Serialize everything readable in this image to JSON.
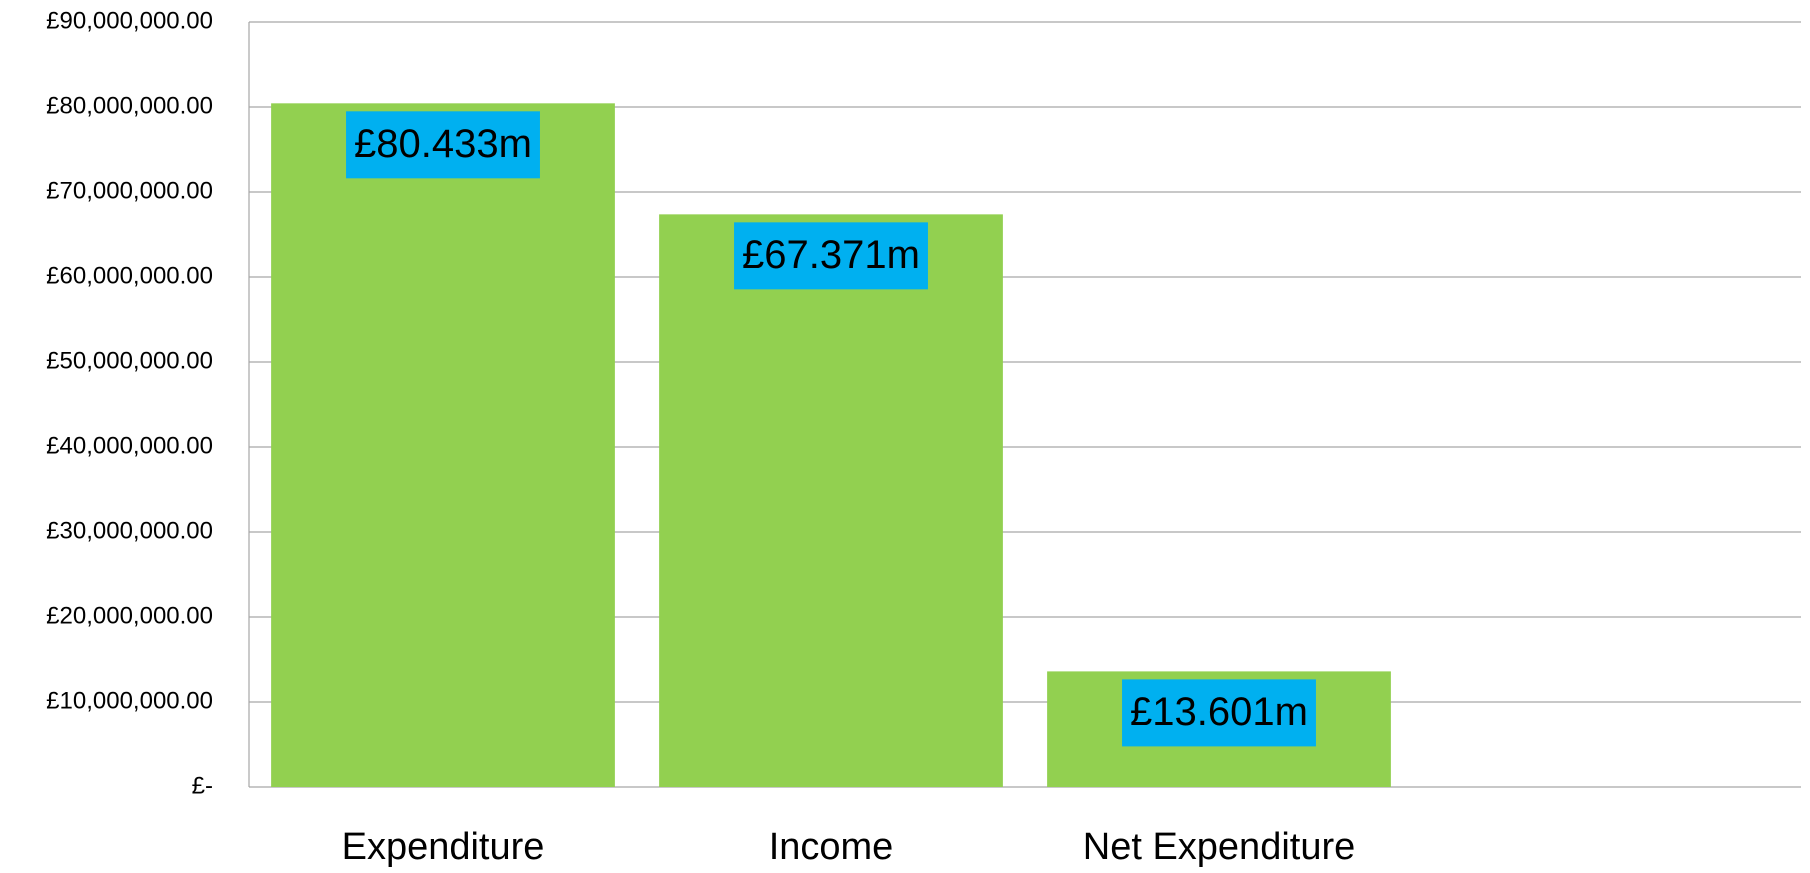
{
  "chart_data": {
    "type": "bar",
    "categories": [
      "Expenditure",
      "Income",
      "Net Expenditure",
      null
    ],
    "values": [
      80433000,
      67371000,
      13601000,
      null
    ],
    "value_labels": [
      "£80.433m",
      "£67.371m",
      "£13.601m",
      null
    ],
    "color": "#92d050",
    "label_color": "#00b0f0",
    "ylim": [
      0,
      90000000
    ],
    "yticks": [
      {
        "value": 0,
        "label": "£-"
      },
      {
        "value": 10000000,
        "label": "£10,000,000.00"
      },
      {
        "value": 20000000,
        "label": "£20,000,000.00"
      },
      {
        "value": 30000000,
        "label": "£30,000,000.00"
      },
      {
        "value": 40000000,
        "label": "£40,000,000.00"
      },
      {
        "value": 50000000,
        "label": "£50,000,000.00"
      },
      {
        "value": 60000000,
        "label": "£60,000,000.00"
      },
      {
        "value": 70000000,
        "label": "£70,000,000.00"
      },
      {
        "value": 80000000,
        "label": "£80,000,000.00"
      },
      {
        "value": 90000000,
        "label": "£90,000,000.00"
      }
    ],
    "grid": true
  }
}
